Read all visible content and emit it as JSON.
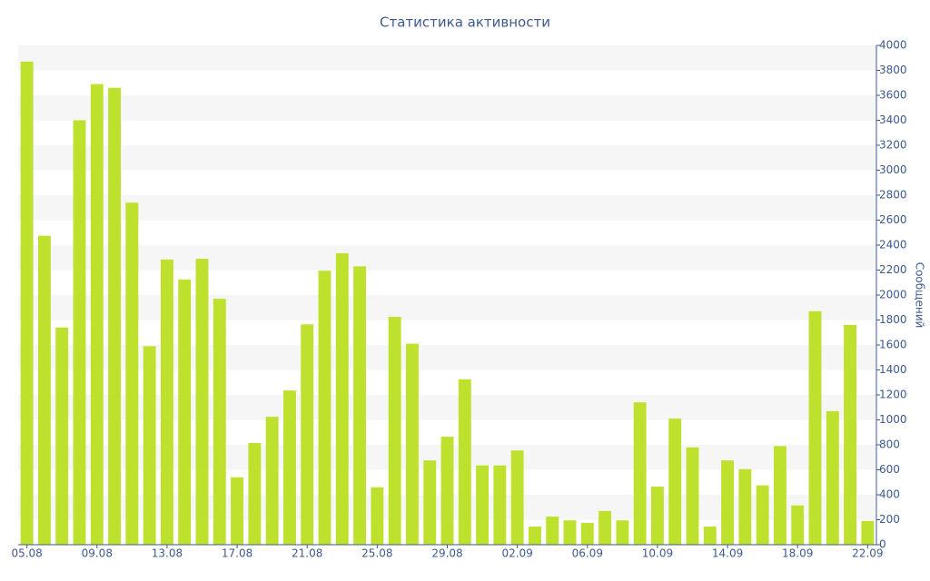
{
  "chart_data": {
    "type": "bar",
    "title": "Статистика активности",
    "y_label": "Сообщений",
    "axis_side": "right",
    "grid": true,
    "color": "#bde12d",
    "categories": [
      "05.08",
      null,
      null,
      null,
      "09.08",
      null,
      null,
      null,
      "13.08",
      null,
      null,
      null,
      "17.08",
      null,
      null,
      null,
      "21.08",
      null,
      null,
      null,
      "25.08",
      null,
      null,
      null,
      "29.08",
      null,
      null,
      null,
      "02.09",
      null,
      null,
      null,
      "06.09",
      null,
      null,
      null,
      "10.09",
      null,
      null,
      null,
      "14.09",
      null,
      null,
      null,
      "18.09",
      null,
      null,
      null,
      "22.09"
    ],
    "values": [
      3870,
      2475,
      1740,
      3400,
      3690,
      3660,
      2740,
      1590,
      2285,
      2125,
      2290,
      1970,
      540,
      815,
      1025,
      1235,
      1765,
      2195,
      2335,
      2230,
      460,
      1825,
      1610,
      675,
      865,
      1325,
      635,
      635,
      755,
      145,
      225,
      195,
      175,
      270,
      195,
      1140,
      465,
      1010,
      780,
      145,
      675,
      605,
      475,
      790,
      315,
      1870,
      1070,
      1760,
      190
    ],
    "ylim": [
      0,
      4000
    ],
    "yticks": [
      0,
      200,
      400,
      600,
      800,
      1000,
      1200,
      1400,
      1600,
      1800,
      2000,
      2200,
      2400,
      2600,
      2800,
      3000,
      3200,
      3400,
      3600,
      3800,
      4000
    ]
  }
}
